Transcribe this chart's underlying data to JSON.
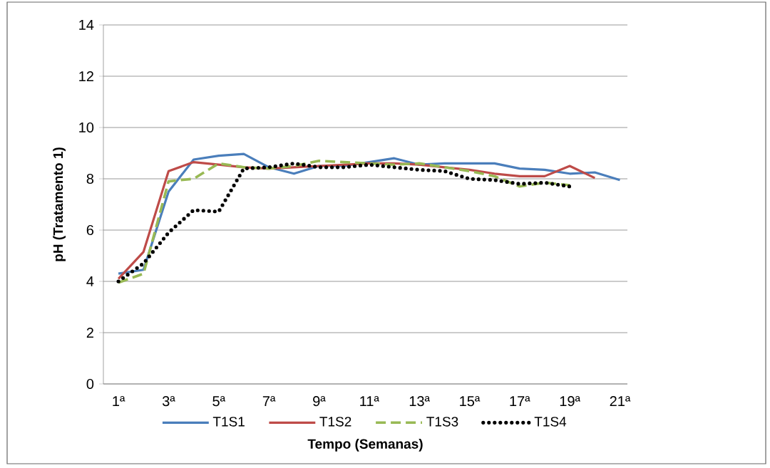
{
  "chart_data": {
    "type": "line",
    "xlabel": "Tempo (Semanas)",
    "ylabel": "pH (Tratamento 1)",
    "categories": [
      "1ª",
      null,
      "3ª",
      null,
      "5ª",
      null,
      "7ª",
      null,
      "9ª",
      null,
      "11ª",
      null,
      "13ª",
      null,
      "15ª",
      null,
      "17ª",
      null,
      "19ª",
      null,
      "21ª"
    ],
    "series": [
      {
        "name": "T1S1",
        "color": "#4a7ebb",
        "line_style": "solid",
        "values": [
          4.3,
          4.45,
          7.5,
          8.75,
          8.9,
          8.97,
          8.45,
          8.2,
          8.5,
          8.5,
          8.65,
          8.8,
          8.55,
          8.6,
          8.6,
          8.6,
          8.4,
          8.35,
          8.2,
          8.25,
          7.95
        ]
      },
      {
        "name": "T1S2",
        "color": "#be4b48",
        "line_style": "solid",
        "values": [
          4.1,
          5.15,
          8.3,
          8.65,
          8.55,
          8.45,
          8.4,
          8.45,
          8.5,
          8.55,
          8.6,
          8.6,
          8.55,
          8.45,
          8.35,
          8.2,
          8.1,
          8.1,
          8.5,
          8.03,
          null
        ]
      },
      {
        "name": "T1S3",
        "color": "#98b954",
        "line_style": "dashed",
        "values": [
          3.95,
          4.3,
          7.9,
          8.0,
          8.6,
          8.45,
          8.4,
          8.5,
          8.7,
          8.65,
          8.6,
          8.55,
          8.6,
          8.45,
          8.3,
          8.1,
          7.7,
          7.85,
          7.75,
          null,
          null
        ]
      },
      {
        "name": "T1S4",
        "color": "#000000",
        "line_style": "dotted",
        "values": [
          4.0,
          4.7,
          5.9,
          6.78,
          6.72,
          8.4,
          8.45,
          8.6,
          8.45,
          8.45,
          8.55,
          8.45,
          8.35,
          8.3,
          8.0,
          7.95,
          7.8,
          7.85,
          7.7,
          null,
          null
        ]
      }
    ],
    "ylim": [
      0,
      14
    ],
    "yticks": [
      0,
      2,
      4,
      6,
      8,
      10,
      12,
      14
    ],
    "grid": "y",
    "legend": "bottom",
    "marker": "none"
  }
}
